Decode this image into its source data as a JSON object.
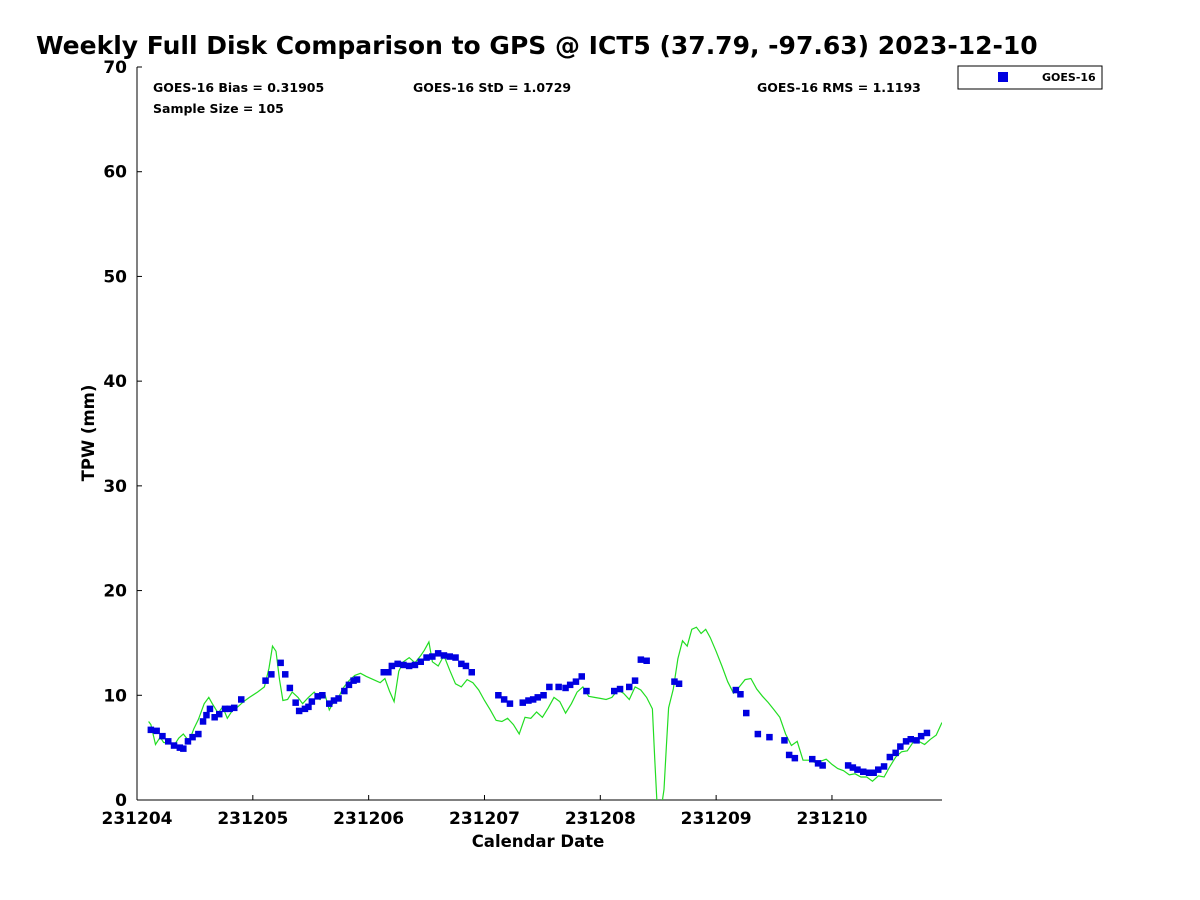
{
  "chart_data": {
    "type": "scatter",
    "title": "Weekly Full Disk Comparison to GPS @ ICT5 (37.79, -97.63) 2023-12-10",
    "xlabel": "Calendar Date",
    "ylabel": "TPW (mm)",
    "xlim": [
      "231204",
      "231210.95"
    ],
    "ylim": [
      0,
      70
    ],
    "x_tick_labels": [
      "231204",
      "231205",
      "231206",
      "231207",
      "231208",
      "231209",
      "231210"
    ],
    "y_tick_labels": [
      "0",
      "10",
      "20",
      "30",
      "40",
      "50",
      "60",
      "70"
    ],
    "stats": {
      "bias": "GOES-16 Bias = 0.31905",
      "std": "GOES-16 StD = 1.0729",
      "rms": "GOES-16 RMS = 1.1193",
      "sample_size": "Sample Size = 105"
    },
    "legend": {
      "position": "top-right",
      "entries": [
        "GOES-16"
      ]
    },
    "series": [
      {
        "name": "GOES-16",
        "kind": "markers",
        "color": "#0000e0",
        "marker": "square",
        "x": [
          231204.12,
          231204.17,
          231204.22,
          231204.27,
          231204.32,
          231204.37,
          231204.4,
          231204.44,
          231204.48,
          231204.53,
          231204.57,
          231204.6,
          231204.63,
          231204.67,
          231204.71,
          231204.76,
          231204.8,
          231204.84,
          231204.9,
          231205.11,
          231205.16,
          231205.24,
          231205.28,
          231205.32,
          231205.37,
          231205.4,
          231205.45,
          231205.48,
          231205.51,
          231205.56,
          231205.6,
          231205.66,
          231205.7,
          231205.74,
          231205.79,
          231205.83,
          231205.87,
          231205.9,
          231206.13,
          231206.17,
          231206.2,
          231206.25,
          231206.3,
          231206.35,
          231206.4,
          231206.45,
          231206.5,
          231206.55,
          231206.6,
          231206.65,
          231206.7,
          231206.75,
          231206.8,
          231206.84,
          231206.89,
          231207.12,
          231207.17,
          231207.22,
          231207.33,
          231207.38,
          231207.42,
          231207.46,
          231207.51,
          231207.56,
          231207.64,
          231207.7,
          231207.74,
          231207.79,
          231207.84,
          231207.88,
          231208.12,
          231208.17,
          231208.25,
          231208.3,
          231208.35,
          231208.4,
          231208.64,
          231208.68,
          231209.17,
          231209.21,
          231209.26,
          231209.36,
          231209.46,
          231209.59,
          231209.63,
          231209.68,
          231209.83,
          231209.88,
          231209.92,
          231210.14,
          231210.18,
          231210.22,
          231210.27,
          231210.32,
          231210.36,
          231210.4,
          231210.45,
          231210.5,
          231210.55,
          231210.59,
          231210.64,
          231210.68,
          231210.73,
          231210.77,
          231210.82
        ],
        "y": [
          6.7,
          6.6,
          6.1,
          5.6,
          5.2,
          5.0,
          4.9,
          5.6,
          6.0,
          6.3,
          7.5,
          8.1,
          8.7,
          7.9,
          8.2,
          8.7,
          8.7,
          8.8,
          9.6,
          11.4,
          12.0,
          13.1,
          12.0,
          10.7,
          9.3,
          8.5,
          8.7,
          8.9,
          9.4,
          9.9,
          10.0,
          9.2,
          9.5,
          9.7,
          10.4,
          11.0,
          11.4,
          11.5,
          12.2,
          12.2,
          12.8,
          13.0,
          12.9,
          12.8,
          12.9,
          13.2,
          13.6,
          13.7,
          14.0,
          13.8,
          13.7,
          13.6,
          13.0,
          12.8,
          12.2,
          10.0,
          9.6,
          9.2,
          9.3,
          9.5,
          9.6,
          9.8,
          10.0,
          10.8,
          10.8,
          10.7,
          11.0,
          11.3,
          11.8,
          10.4,
          10.4,
          10.6,
          10.8,
          11.4,
          13.4,
          13.3,
          11.3,
          11.1,
          10.5,
          10.1,
          8.3,
          6.3,
          6.0,
          5.7,
          4.3,
          4.0,
          3.9,
          3.5,
          3.3,
          3.3,
          3.1,
          2.9,
          2.7,
          2.6,
          2.6,
          2.9,
          3.2,
          4.1,
          4.5,
          5.1,
          5.6,
          5.8,
          5.7,
          6.1,
          6.4
        ]
      },
      {
        "name": "",
        "kind": "line",
        "color": "#22dd22",
        "x": [
          231204.1,
          231204.12,
          231204.16,
          231204.2,
          231204.23,
          231204.28,
          231204.32,
          231204.36,
          231204.4,
          231204.45,
          231204.49,
          231204.53,
          231204.58,
          231204.62,
          231204.65,
          231204.7,
          231204.74,
          231204.78,
          231204.82,
          231204.86,
          231204.92,
          231204.97,
          231205.04,
          231205.1,
          231205.14,
          231205.17,
          231205.2,
          231205.23,
          231205.26,
          231205.3,
          231205.34,
          231205.39,
          231205.43,
          231205.48,
          231205.53,
          231205.58,
          231205.62,
          231205.66,
          231205.7,
          231205.74,
          231205.78,
          231205.83,
          231205.88,
          231205.93,
          231205.98,
          231206.04,
          231206.1,
          231206.14,
          231206.18,
          231206.22,
          231206.26,
          231206.3,
          231206.35,
          231206.4,
          231206.45,
          231206.48,
          231206.52,
          231206.55,
          231206.6,
          231206.65,
          231206.7,
          231206.75,
          231206.8,
          231206.85,
          231206.9,
          231206.95,
          231207.0,
          231207.05,
          231207.1,
          231207.15,
          231207.2,
          231207.25,
          231207.3,
          231207.35,
          231207.4,
          231207.45,
          231207.5,
          231207.55,
          231207.6,
          231207.65,
          231207.7,
          231207.75,
          231207.8,
          231207.85,
          231207.9,
          231207.95,
          231208.0,
          231208.05,
          231208.1,
          231208.15,
          231208.2,
          231208.25,
          231208.3,
          231208.35,
          231208.4,
          231208.45,
          231208.47,
          231208.49,
          231208.51,
          231208.53,
          231208.55,
          231208.57,
          231208.59,
          231208.63,
          231208.67,
          231208.71,
          231208.75,
          231208.79,
          231208.83,
          231208.87,
          231208.91,
          231208.95,
          231209.0,
          231209.05,
          231209.1,
          231209.15,
          231209.2,
          231209.25,
          231209.3,
          231209.35,
          231209.4,
          231209.45,
          231209.5,
          231209.55,
          231209.6,
          231209.65,
          231209.7,
          231209.75,
          231209.8,
          231209.85,
          231209.9,
          231209.95,
          231210.0,
          231210.05,
          231210.1,
          231210.15,
          231210.2,
          231210.25,
          231210.3,
          231210.35,
          231210.4,
          231210.45,
          231210.5,
          231210.55,
          231210.6,
          231210.65,
          231210.7,
          231210.75,
          231210.8,
          231210.85,
          231210.9,
          231210.95
        ],
        "y": [
          7.5,
          7.2,
          5.3,
          6.0,
          5.5,
          5.4,
          5.2,
          5.9,
          6.3,
          5.6,
          6.8,
          7.7,
          9.2,
          9.8,
          9.2,
          8.3,
          8.9,
          7.8,
          8.5,
          8.8,
          9.4,
          9.8,
          10.3,
          10.8,
          12.6,
          14.7,
          14.2,
          11.5,
          9.5,
          9.6,
          10.3,
          9.8,
          9.2,
          9.8,
          10.3,
          9.6,
          10.2,
          8.6,
          9.4,
          9.8,
          10.7,
          11.4,
          11.9,
          12.1,
          11.8,
          11.5,
          11.2,
          11.6,
          10.4,
          9.4,
          12.3,
          13.2,
          13.6,
          13.1,
          13.8,
          14.3,
          15.1,
          13.2,
          12.8,
          13.8,
          12.4,
          11.1,
          10.8,
          11.5,
          11.2,
          10.5,
          9.5,
          8.6,
          7.6,
          7.5,
          7.8,
          7.2,
          6.3,
          7.9,
          7.8,
          8.4,
          7.9,
          8.8,
          9.8,
          9.4,
          8.3,
          9.2,
          10.3,
          10.8,
          9.9,
          9.8,
          9.7,
          9.6,
          9.8,
          10.5,
          10.2,
          9.6,
          10.8,
          10.5,
          9.8,
          8.7,
          4.0,
          -0.5,
          -0.5,
          -0.5,
          1.0,
          5.0,
          8.8,
          10.6,
          13.5,
          15.2,
          14.7,
          16.3,
          16.5,
          15.9,
          16.3,
          15.5,
          14.2,
          12.8,
          11.3,
          10.2,
          10.8,
          11.5,
          11.6,
          10.6,
          9.9,
          9.3,
          8.6,
          7.9,
          6.3,
          5.2,
          5.6,
          3.8,
          3.8,
          3.6,
          3.7,
          3.9,
          3.4,
          3.0,
          2.8,
          2.4,
          2.5,
          2.2,
          2.2,
          1.8,
          2.3,
          2.2,
          3.2,
          4.1,
          4.6,
          4.7,
          5.5,
          5.6,
          5.3,
          5.8,
          6.2,
          7.4
        ]
      }
    ]
  }
}
